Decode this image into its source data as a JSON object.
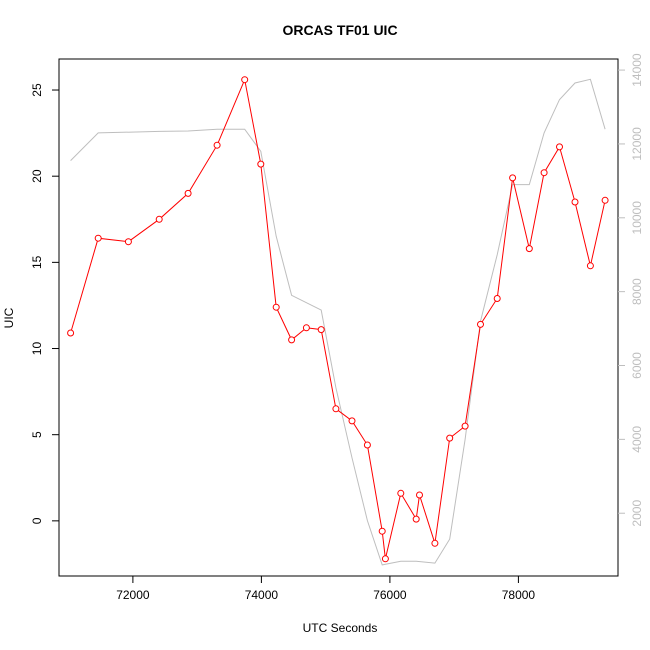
{
  "chart_data": {
    "type": "line",
    "title": "ORCAS TF01 UIC",
    "xlabel": "UTC Seconds",
    "ylabel": "UIC",
    "xlim": [
      70850,
      79550
    ],
    "ylim": [
      -3.2,
      26.8
    ],
    "y2lim": [
      300,
      14300
    ],
    "x_ticks": [
      72000,
      74000,
      76000,
      78000
    ],
    "y_ticks": [
      0,
      5,
      10,
      15,
      20,
      25
    ],
    "y2_ticks": [
      2000,
      4000,
      6000,
      8000,
      10000,
      12000,
      14000
    ],
    "grid": false,
    "legend": "none",
    "colors": {
      "primary": "#ff0000",
      "secondary": "#bebebe"
    },
    "series": [
      {
        "axis": "left",
        "style": "line+points",
        "x": [
          71030,
          71460,
          71930,
          72410,
          72860,
          73310,
          73740,
          73990,
          74230,
          74470,
          74700,
          74930,
          75160,
          75410,
          75650,
          75880,
          75930,
          76170,
          76410,
          76460,
          76700,
          76930,
          77170,
          77410,
          77670,
          77910,
          78170,
          78400,
          78640,
          78880,
          79120,
          79350
        ],
        "values": [
          10.9,
          16.4,
          16.2,
          17.5,
          19.0,
          21.8,
          25.6,
          20.7,
          12.4,
          10.5,
          11.2,
          11.1,
          6.5,
          5.8,
          4.4,
          -0.6,
          -2.2,
          1.6,
          0.1,
          1.5,
          -1.3,
          4.8,
          5.5,
          11.4,
          12.9,
          19.9,
          15.8,
          20.2,
          21.7,
          18.5,
          14.8,
          18.6
        ]
      },
      {
        "axis": "right",
        "style": "line",
        "x": [
          71030,
          71460,
          72410,
          72860,
          73310,
          73740,
          73990,
          74230,
          74470,
          74930,
          75160,
          75410,
          75650,
          75880,
          76170,
          76410,
          76700,
          76930,
          77170,
          77410,
          77670,
          77910,
          78170,
          78400,
          78640,
          78880,
          79120,
          79350
        ],
        "values": [
          11550,
          12300,
          12340,
          12350,
          12400,
          12400,
          11800,
          9500,
          7900,
          7500,
          5400,
          3500,
          1800,
          600,
          700,
          700,
          650,
          1300,
          4000,
          7200,
          9000,
          10900,
          10900,
          12300,
          13200,
          13650,
          13750,
          12400
        ]
      }
    ]
  }
}
